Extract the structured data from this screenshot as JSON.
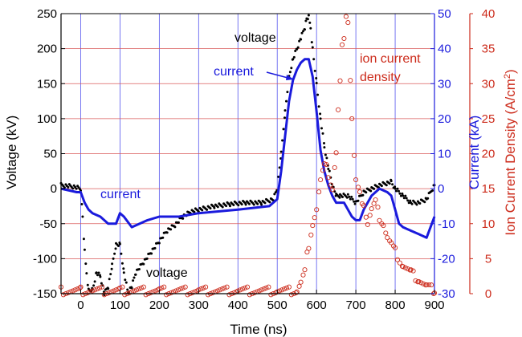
{
  "chart_data": {
    "type": "line",
    "xlabel": "Time (ns)",
    "ylabel_left": "Voltage (kV)",
    "ylabel_right1": "Current (kA)",
    "ylabel_right2_main": "Ion Current Density (A/cm",
    "ylabel_right2_sup": "2",
    "ylabel_right2_close": ")",
    "xlim": [
      -50,
      900
    ],
    "ylim_voltage": [
      -150,
      250
    ],
    "ylim_current": [
      -30,
      50
    ],
    "ylim_density": [
      0,
      40
    ],
    "x_ticks": [
      0,
      100,
      200,
      300,
      400,
      500,
      600,
      700,
      800,
      900
    ],
    "y_ticks_voltage": [
      -150,
      -100,
      -50,
      0,
      50,
      100,
      150,
      200,
      250
    ],
    "y_ticks_current": [
      -30,
      -20,
      -10,
      0,
      10,
      20,
      30,
      40,
      50
    ],
    "y_ticks_density": [
      0,
      5,
      10,
      15,
      20,
      25,
      30,
      35,
      40
    ],
    "grid": true,
    "colors": {
      "voltage": "#000000",
      "current": "#1a1adc",
      "density": "#cc2a1a",
      "vgrid": "#5555ee",
      "hgrid": "#d95a5a"
    },
    "annotations": {
      "voltage_top": "voltage",
      "current_top": "current",
      "density_line1": "ion current",
      "density_line2": "density",
      "current_bottom": "current",
      "voltage_bottom": "voltage"
    },
    "series": [
      {
        "name": "voltage",
        "axis": "voltage",
        "style": "dots",
        "x": [
          -50,
          -20,
          0,
          5,
          10,
          15,
          20,
          30,
          40,
          50,
          60,
          70,
          80,
          90,
          100,
          110,
          120,
          130,
          140,
          160,
          180,
          200,
          220,
          240,
          260,
          280,
          300,
          340,
          380,
          420,
          460,
          490,
          500,
          510,
          520,
          530,
          540,
          550,
          560,
          570,
          575,
          580,
          585,
          590,
          600,
          610,
          620,
          630,
          640,
          650,
          660,
          680,
          700,
          720,
          740,
          760,
          780,
          790,
          800,
          820,
          840,
          860,
          880,
          900
        ],
        "y": [
          5,
          3,
          0,
          -40,
          -90,
          -120,
          -145,
          -145,
          -120,
          -125,
          -150,
          -140,
          -110,
          -80,
          -80,
          -120,
          -148,
          -140,
          -120,
          -105,
          -90,
          -75,
          -60,
          -52,
          -40,
          -33,
          -30,
          -25,
          -22,
          -20,
          -20,
          -15,
          0,
          50,
          110,
          160,
          185,
          200,
          215,
          230,
          243,
          245,
          230,
          200,
          150,
          100,
          60,
          30,
          5,
          -10,
          -10,
          -10,
          -20,
          -5,
          0,
          5,
          8,
          10,
          0,
          -10,
          -20,
          -20,
          -15,
          5
        ]
      },
      {
        "name": "current",
        "axis": "current",
        "style": "line",
        "x": [
          -50,
          -10,
          0,
          10,
          20,
          30,
          50,
          70,
          90,
          100,
          110,
          130,
          150,
          170,
          200,
          250,
          300,
          400,
          480,
          500,
          510,
          520,
          530,
          540,
          550,
          560,
          570,
          580,
          590,
          600,
          610,
          620,
          630,
          640,
          650,
          660,
          670,
          680,
          690,
          700,
          710,
          720,
          740,
          760,
          780,
          790,
          800,
          810,
          820,
          840,
          860,
          880,
          900
        ],
        "y": [
          0,
          -1,
          -1,
          -4,
          -6,
          -7,
          -8,
          -10,
          -10,
          -7,
          -8,
          -11,
          -10,
          -9,
          -8,
          -8,
          -7,
          -6,
          -5,
          -3,
          5,
          15,
          25,
          31,
          34,
          36,
          37,
          37,
          32,
          22,
          11,
          5,
          1,
          -2,
          -4,
          -4,
          -4,
          -6,
          -8,
          -9,
          -9,
          -6,
          -2,
          0,
          -1,
          -2,
          -6,
          -10,
          -11,
          -12,
          -13,
          -14,
          -8
        ]
      },
      {
        "name": "ion current density",
        "axis": "density",
        "style": "circles",
        "x": [
          -50,
          0,
          100,
          200,
          300,
          400,
          500,
          550,
          560,
          570,
          580,
          590,
          595,
          600,
          610,
          620,
          625,
          630,
          640,
          650,
          655,
          660,
          665,
          670,
          675,
          680,
          690,
          700,
          710,
          720,
          730,
          740,
          750,
          760,
          770,
          780,
          790,
          800,
          820,
          840,
          860,
          880,
          900
        ],
        "y": [
          0.4,
          0.4,
          0.4,
          0.4,
          0.4,
          0.4,
          0.4,
          0.4,
          1.5,
          3,
          7,
          10,
          11,
          12,
          16,
          18,
          19,
          17,
          15,
          20,
          26,
          30,
          35,
          37,
          40,
          39,
          25,
          16,
          14,
          13,
          10,
          12,
          13,
          11,
          10,
          8,
          7,
          6,
          4,
          3,
          2,
          1,
          0.5
        ]
      }
    ]
  }
}
